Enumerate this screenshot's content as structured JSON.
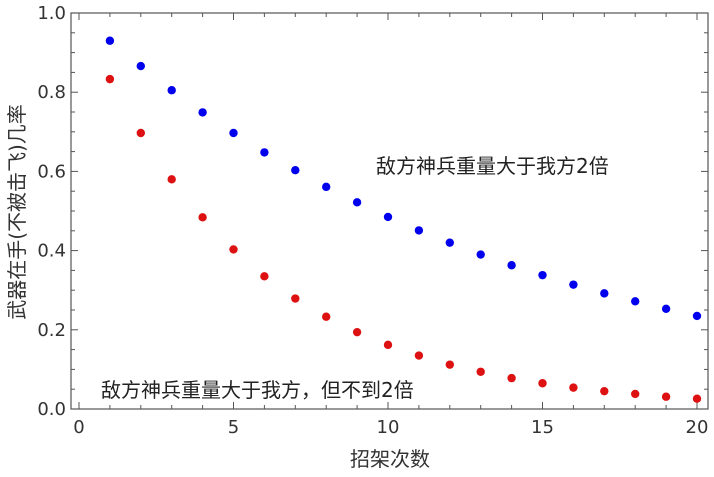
{
  "chart_data": {
    "type": "scatter",
    "title": "",
    "xlabel": "招架次数",
    "ylabel": "武器在手(不被击飞)几率",
    "xlim": [
      0,
      20
    ],
    "ylim": [
      0,
      1
    ],
    "xticks": [
      "0",
      "5",
      "10",
      "15",
      "20"
    ],
    "yticks": [
      "0.0",
      "0.2",
      "0.4",
      "0.6",
      "0.8",
      "1.0"
    ],
    "series": [
      {
        "name": "敌方神兵重量大于我方2倍",
        "color": "#0000ee",
        "x": [
          1,
          2,
          3,
          4,
          5,
          6,
          7,
          8,
          9,
          10,
          11,
          12,
          13,
          14,
          15,
          16,
          17,
          18,
          19,
          20
        ],
        "values": [
          0.93,
          0.866,
          0.805,
          0.749,
          0.697,
          0.648,
          0.603,
          0.561,
          0.522,
          0.485,
          0.451,
          0.42,
          0.39,
          0.363,
          0.338,
          0.314,
          0.292,
          0.272,
          0.253,
          0.235
        ]
      },
      {
        "name": "敌方神兵重量大于我方，但不到2倍",
        "color": "#dd1111",
        "x": [
          1,
          2,
          3,
          4,
          5,
          6,
          7,
          8,
          9,
          10,
          11,
          12,
          13,
          14,
          15,
          16,
          17,
          18,
          19,
          20
        ],
        "values": [
          0.833,
          0.697,
          0.58,
          0.484,
          0.403,
          0.335,
          0.279,
          0.233,
          0.194,
          0.162,
          0.135,
          0.112,
          0.094,
          0.078,
          0.065,
          0.054,
          0.045,
          0.038,
          0.031,
          0.026
        ]
      }
    ],
    "annotations": [
      {
        "text": "敌方神兵重量大于我方2倍",
        "series": 0
      },
      {
        "text": "敌方神兵重量大于我方，但不到2倍",
        "series": 1
      }
    ]
  }
}
